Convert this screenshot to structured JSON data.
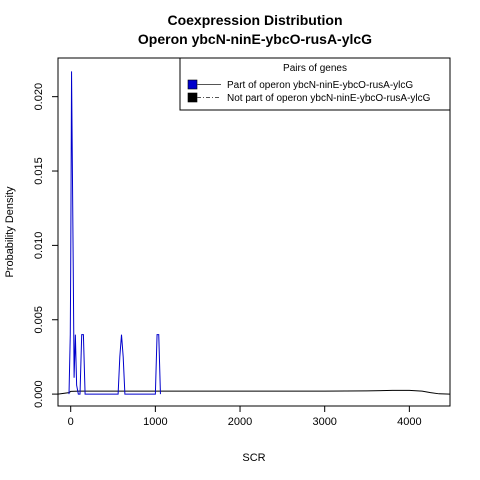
{
  "chart_data": {
    "type": "line",
    "title": "Coexpression Distribution",
    "subtitle": "Operon ybcN-ninE-ybcO-rusA-ylcG",
    "xlabel": "SCR",
    "ylabel": "Probability Density",
    "xlim": [
      -150,
      4480
    ],
    "ylim": [
      -0.0008,
      0.0226
    ],
    "x_ticks": [
      0,
      1000,
      2000,
      3000,
      4000
    ],
    "y_ticks": [
      0.0,
      0.005,
      0.01,
      0.015,
      0.02
    ],
    "y_tick_labels": [
      "0.000",
      "0.005",
      "0.010",
      "0.015",
      "0.020"
    ],
    "legend": {
      "title": "Pairs of genes",
      "position": "top-right",
      "entries": [
        {
          "label": "Part of operon ybcN-ninE-ybcO-rusA-ylcG",
          "color": "#0000cc",
          "line": "solid"
        },
        {
          "label": "Not part of operon ybcN-ninE-ybcO-rusA-ylcG",
          "color": "#000000",
          "line": "dashed"
        }
      ]
    },
    "series": [
      {
        "name": "Part of operon ybcN-ninE-ybcO-rusA-ylcG",
        "color": "#0000cc",
        "x": [
          -20,
          -5,
          0,
          10,
          30,
          40,
          55,
          70,
          90,
          110,
          130,
          150,
          170,
          200,
          560,
          580,
          600,
          620,
          640,
          1000,
          1020,
          1040,
          1060
        ],
        "y": [
          0.0,
          0.004,
          0.0085,
          0.0217,
          0.0085,
          0.0011,
          0.004,
          0.0006,
          0.0,
          0.0,
          0.004,
          0.004,
          0.0,
          0.0,
          0.0,
          0.0025,
          0.004,
          0.0025,
          0.0,
          0.0,
          0.004,
          0.004,
          0.0
        ]
      },
      {
        "name": "Not part of operon ybcN-ninE-ybcO-rusA-ylcG",
        "color": "#000000",
        "x": [
          -150,
          -20,
          0,
          100,
          500,
          1000,
          2000,
          3000,
          3500,
          3800,
          4000,
          4150,
          4250,
          4350,
          4480
        ],
        "y": [
          0.0,
          0.0001,
          0.00018,
          0.0002,
          0.0002,
          0.0002,
          0.0002,
          0.0002,
          0.00022,
          0.00025,
          0.00025,
          0.0002,
          0.0001,
          2e-05,
          0.0
        ]
      }
    ]
  }
}
